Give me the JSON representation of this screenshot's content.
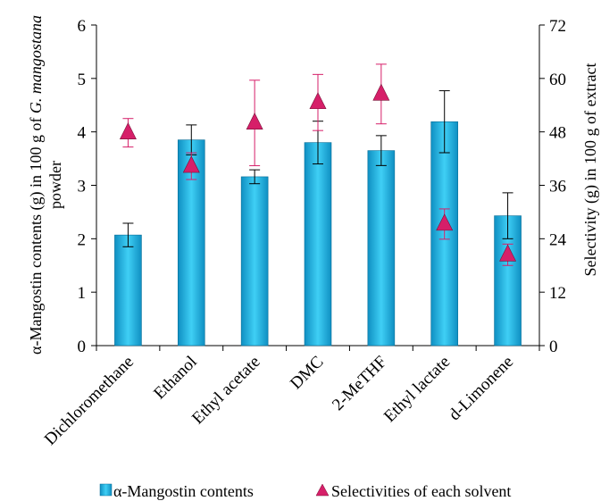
{
  "chart_data": {
    "type": "bar",
    "categories": [
      "Dichloromethane",
      "Ethanol",
      "Ethyl acetate",
      "DMC",
      "2-MeTHF",
      "Ethyl lactate",
      "d-Limonene"
    ],
    "series": [
      {
        "name": "α-Mangostin contents",
        "type": "bar",
        "axis": "left",
        "values": [
          2.07,
          3.85,
          3.16,
          3.8,
          3.65,
          4.19,
          2.43
        ],
        "errors": [
          0.22,
          0.28,
          0.13,
          0.4,
          0.28,
          0.58,
          0.43
        ],
        "color": "#1ab2e6"
      },
      {
        "name": "Selectivities of each solvent",
        "type": "scatter",
        "axis": "right",
        "values": [
          47.8,
          40.3,
          50.0,
          54.6,
          56.5,
          27.3,
          20.4
        ],
        "errors": [
          3.2,
          3.0,
          9.6,
          6.3,
          6.7,
          3.4,
          2.4
        ],
        "color": "#d61f69"
      }
    ],
    "ylabel_left_parts": [
      "α-Mangostin contents (g) in 100 g of ",
      "G. mangostana",
      "powder"
    ],
    "ylabel_right": "Selectivity (g) in 100 g of extract",
    "ylim_left": [
      0,
      6
    ],
    "yticks_left": [
      "0",
      "1",
      "2",
      "3",
      "4",
      "5",
      "6"
    ],
    "ylim_right": [
      0,
      72
    ],
    "yticks_right": [
      "0",
      "12",
      "24",
      "36",
      "48",
      "60",
      "72"
    ],
    "grid": false,
    "legend_position": "bottom"
  }
}
